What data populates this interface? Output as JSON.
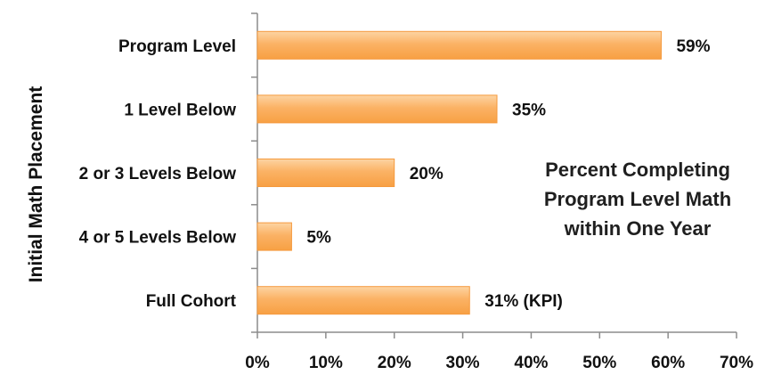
{
  "chart_data": {
    "type": "bar",
    "orientation": "horizontal",
    "title": "",
    "ylabel": "Initial Math Placement",
    "xlabel": "",
    "categories": [
      "Program Level",
      "1 Level Below",
      "2 or 3 Levels Below",
      "4 or 5 Levels Below",
      "Full Cohort"
    ],
    "values": [
      59,
      35,
      20,
      5,
      31
    ],
    "data_labels": [
      "59%",
      "35%",
      "20%",
      "5%",
      "31%  (KPI)"
    ],
    "xlim": [
      0,
      70
    ],
    "xticks": [
      0,
      10,
      20,
      30,
      40,
      50,
      60,
      70
    ],
    "xtick_labels": [
      "0%",
      "10%",
      "20%",
      "30%",
      "40%",
      "50%",
      "60%",
      "70%"
    ],
    "annotation": [
      "Percent Completing",
      "Program Level Math",
      "within One Year"
    ],
    "bar_color": "#FBB265",
    "bar_edge_color": "#F59A3E",
    "grid": false,
    "legend": "none"
  }
}
